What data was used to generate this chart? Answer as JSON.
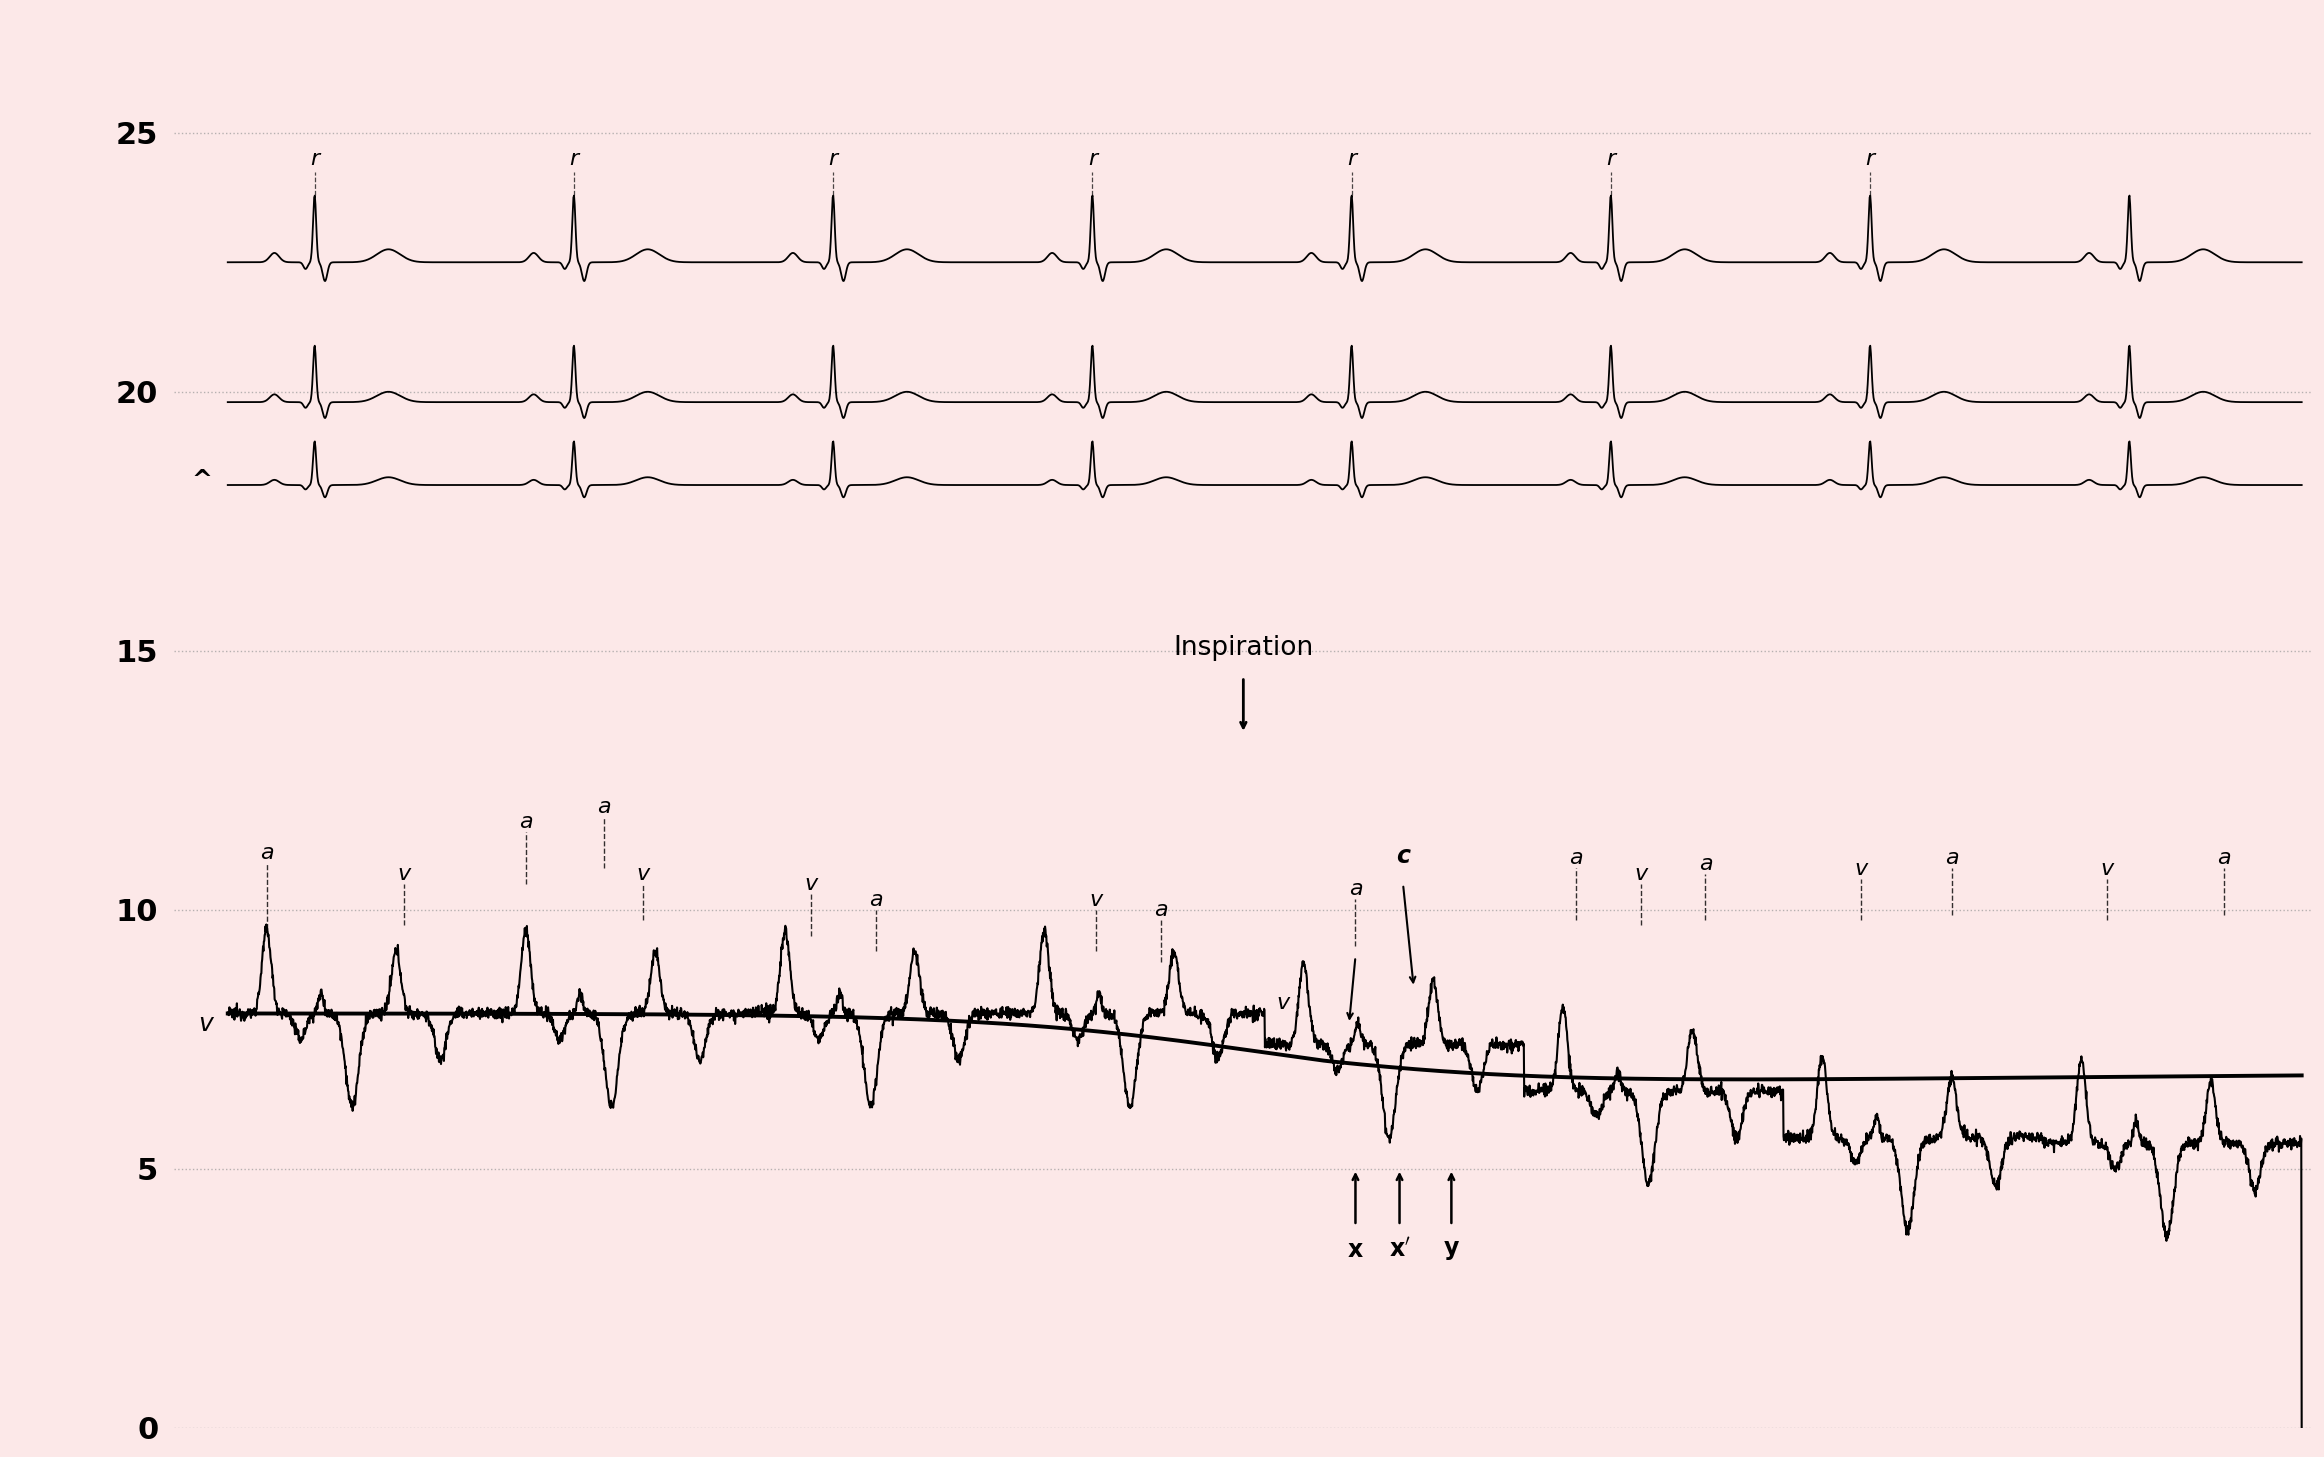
{
  "background_color": "#fce8e8",
  "line_color": "#000000",
  "ylim": [
    0,
    27
  ],
  "xlim": [
    0,
    100
  ],
  "yticks": [
    0,
    5,
    10,
    15,
    20,
    25
  ],
  "ylabel_left": [
    "0",
    "5",
    "10",
    "15",
    "20",
    "25"
  ],
  "grid_color": "#999999",
  "ecg1_baseline": 22.5,
  "ecg2_baseline": 19.8,
  "ecg3_baseline": 18.2,
  "n_ecg_beats": 8,
  "jvp_mean_pre": 8.0,
  "jvp_mean_post": 5.5,
  "inspiration_x": 49.0,
  "inspiration_label": "Inspiration",
  "x_start": 2.5,
  "x_end": 99.5
}
